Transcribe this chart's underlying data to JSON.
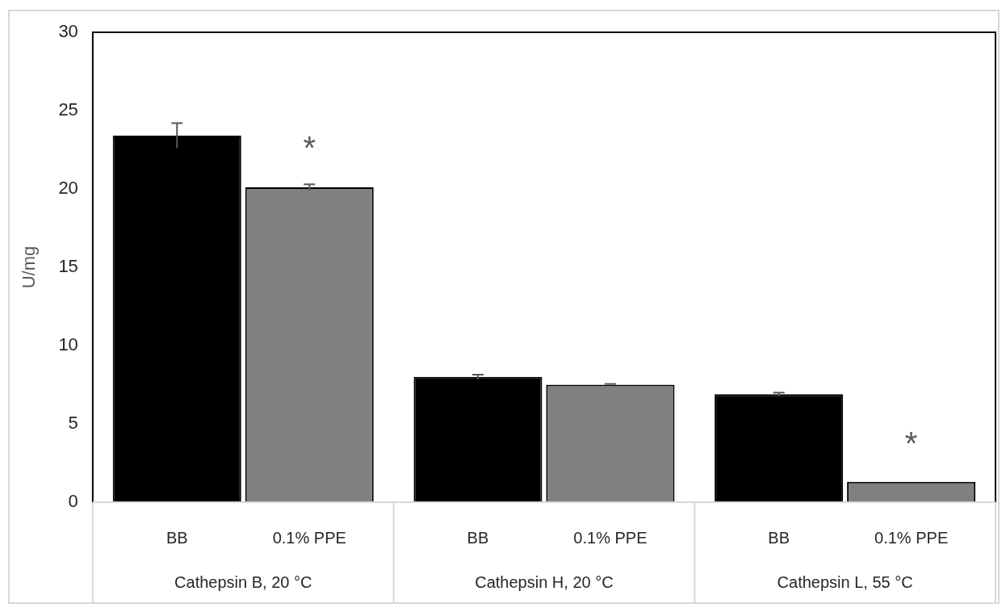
{
  "chart_data": {
    "type": "bar",
    "ylabel": "U/mg",
    "categories": [
      "Cathepsin B, 20 °C",
      "Cathepsin H, 20 °C",
      "Cathepsin L, 55 °C"
    ],
    "series": [
      {
        "name": "BB",
        "color": "#000000",
        "values": [
          23.4,
          8.0,
          6.9
        ],
        "errors": [
          0.8,
          0.15,
          0.1
        ]
      },
      {
        "name": "0.1% PPE",
        "color": "#808080",
        "values": [
          20.1,
          7.5,
          1.3
        ],
        "errors": [
          0.2,
          0.05,
          null
        ]
      }
    ],
    "ylim": [
      0,
      30
    ],
    "yticks": [
      0,
      5,
      10,
      15,
      20,
      25,
      30
    ],
    "grid": false,
    "legend": false,
    "annotations": [
      {
        "text": "*",
        "x": "Cathepsin B, 20 °C",
        "y": 23
      },
      {
        "text": "*",
        "x": "Cathepsin L, 55 °C",
        "y": 4.1
      }
    ]
  }
}
